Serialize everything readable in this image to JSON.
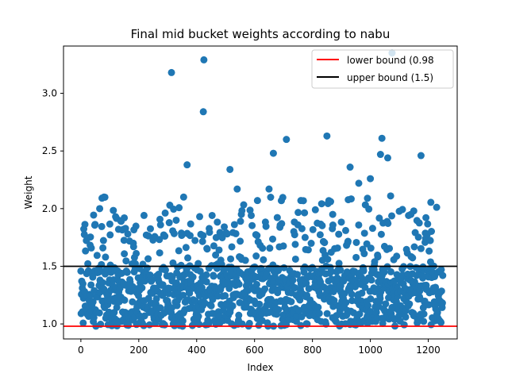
{
  "chart_data": {
    "type": "scatter",
    "title": "Final mid bucket weights according to nabu",
    "xlabel": "Index",
    "ylabel": "Weight",
    "xlim": [
      -60,
      1300
    ],
    "ylim": [
      0.87,
      3.41
    ],
    "xticks": [
      0,
      200,
      400,
      600,
      800,
      1000,
      1200
    ],
    "xtick_labels": [
      "0",
      "200",
      "400",
      "600",
      "800",
      "1000",
      "1200"
    ],
    "yticks": [
      1.0,
      1.5,
      2.0,
      2.5,
      3.0
    ],
    "ytick_labels": [
      "1.0",
      "1.5",
      "2.0",
      "2.5",
      "3.0"
    ],
    "grid": false,
    "legend_position": "top-right",
    "point_color": "#1f77b4",
    "reference_lines": [
      {
        "label": "lower bound (0.98",
        "y": 0.98,
        "color": "#ff0000"
      },
      {
        "label": "upper bound (1.5)",
        "y": 1.5,
        "color": "#000000"
      }
    ],
    "series": [
      {
        "x_range": [
          0,
          1250
        ],
        "n_points": 1250,
        "dense_band": [
          0.98,
          1.5
        ],
        "highlighted_points": [
          {
            "x": 313,
            "y": 3.18
          },
          {
            "x": 425,
            "y": 3.29
          },
          {
            "x": 423,
            "y": 2.84
          },
          {
            "x": 367,
            "y": 2.38
          },
          {
            "x": 355,
            "y": 2.1
          },
          {
            "x": 80,
            "y": 2.1
          },
          {
            "x": 65,
            "y": 2.0
          },
          {
            "x": 515,
            "y": 2.34
          },
          {
            "x": 540,
            "y": 2.17
          },
          {
            "x": 610,
            "y": 2.07
          },
          {
            "x": 665,
            "y": 2.48
          },
          {
            "x": 710,
            "y": 2.6
          },
          {
            "x": 650,
            "y": 2.17
          },
          {
            "x": 760,
            "y": 2.07
          },
          {
            "x": 850,
            "y": 2.63
          },
          {
            "x": 930,
            "y": 2.36
          },
          {
            "x": 960,
            "y": 2.22
          },
          {
            "x": 990,
            "y": 2.09
          },
          {
            "x": 1000,
            "y": 2.26
          },
          {
            "x": 1040,
            "y": 2.61
          },
          {
            "x": 1035,
            "y": 2.47
          },
          {
            "x": 1060,
            "y": 2.44
          },
          {
            "x": 1070,
            "y": 2.11
          },
          {
            "x": 1175,
            "y": 2.46
          },
          {
            "x": 1075,
            "y": 3.35
          },
          {
            "x": 870,
            "y": 1.95
          },
          {
            "x": 810,
            "y": 1.99
          },
          {
            "x": 1150,
            "y": 1.98
          },
          {
            "x": 1140,
            "y": 1.95
          },
          {
            "x": 120,
            "y": 1.93
          },
          {
            "x": 150,
            "y": 1.92
          }
        ]
      }
    ]
  }
}
